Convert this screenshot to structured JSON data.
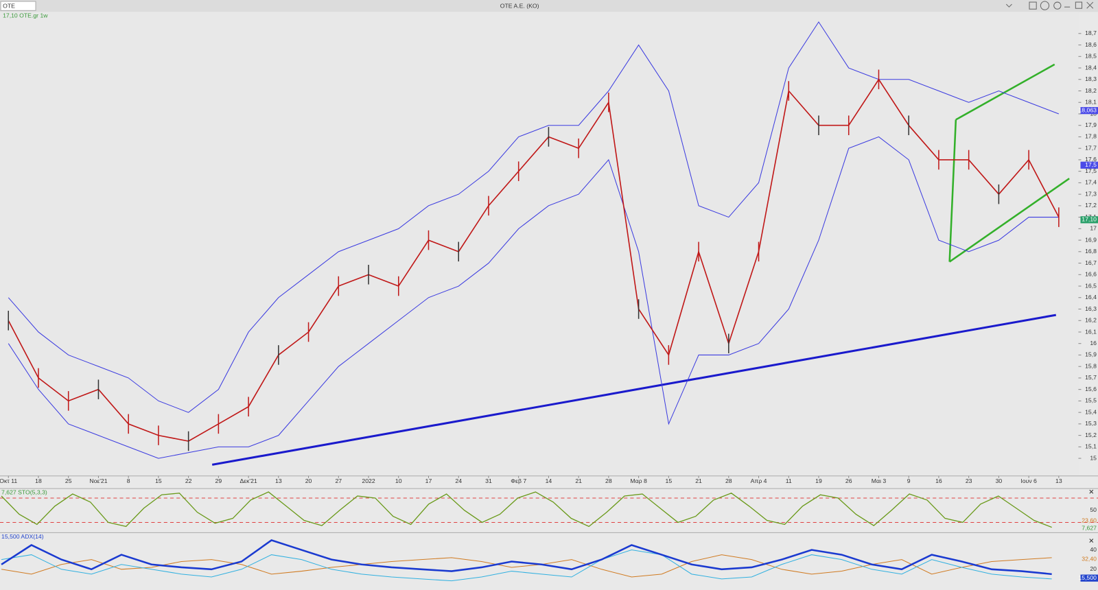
{
  "header": {
    "symbol": "OTE",
    "title": "OTE A.E. (KO)"
  },
  "price": {
    "legend": "17,10 OTE.gr 1w",
    "ylim": [
      14.92,
      18.76
    ],
    "yticks": [
      {
        "value": 18.7,
        "label": "18,7"
      },
      {
        "value": 18.6,
        "label": "18,6"
      },
      {
        "value": 18.5,
        "label": "18,5"
      },
      {
        "value": 18.4,
        "label": "18,4"
      },
      {
        "value": 18.3,
        "label": "18,3"
      },
      {
        "value": 18.2,
        "label": "18,2"
      },
      {
        "value": 18.1,
        "label": "18,1"
      },
      18,
      {
        "value": 17.9,
        "label": "17,9"
      },
      {
        "value": 17.8,
        "label": "17,8"
      },
      {
        "value": 17.7,
        "label": "17,7"
      },
      {
        "value": 17.6,
        "label": "17,6"
      },
      {
        "value": 17.5,
        "label": "17,5"
      },
      {
        "value": 17.4,
        "label": "17,4"
      },
      {
        "value": 17.3,
        "label": "17,3"
      },
      {
        "value": 17.2,
        "label": "17,2"
      },
      {
        "value": 17.1,
        "label": "17,1"
      },
      17,
      {
        "value": 16.9,
        "label": "16,9"
      },
      {
        "value": 16.8,
        "label": "16,8"
      },
      {
        "value": 16.7,
        "label": "16,7"
      },
      {
        "value": 16.6,
        "label": "16,6"
      },
      {
        "value": 16.5,
        "label": "16,5"
      },
      {
        "value": 16.4,
        "label": "16,4"
      },
      {
        "value": 16.3,
        "label": "16,3"
      },
      {
        "value": 16.2,
        "label": "16,2"
      },
      {
        "value": 16.1,
        "label": "16,1"
      },
      16,
      {
        "value": 15.9,
        "label": "15,9"
      },
      {
        "value": 15.8,
        "label": "15,8"
      },
      {
        "value": 15.7,
        "label": "15,7"
      },
      {
        "value": 15.6,
        "label": "15,6"
      },
      {
        "value": 15.5,
        "label": "15,5"
      },
      {
        "value": 15.4,
        "label": "15,4"
      },
      {
        "value": 15.3,
        "label": "15,3"
      },
      {
        "value": 15.2,
        "label": "15,2"
      },
      {
        "value": 15.1,
        "label": "15,1"
      },
      15
    ],
    "categories": [
      "Οκτ 11",
      "18",
      "25",
      "Νοε'21",
      "8",
      "15",
      "22",
      "29",
      "Δεκ'21",
      "13",
      "20",
      "27",
      "2022",
      "10",
      "17",
      "24",
      "31",
      "Φεβ 7",
      "14",
      "21",
      "28",
      "Μαρ 8",
      "15",
      "21",
      "28",
      "Απρ 4",
      "11",
      "19",
      "26",
      "Μαι 3",
      "9",
      "16",
      "23",
      "30",
      "Ιουν 6",
      "13"
    ],
    "close": [
      16.2,
      15.7,
      15.5,
      15.6,
      15.3,
      15.2,
      15.15,
      15.3,
      15.45,
      15.9,
      16.1,
      16.5,
      16.6,
      16.5,
      16.9,
      16.8,
      17.2,
      17.5,
      17.8,
      17.7,
      18.1,
      16.3,
      15.9,
      16.8,
      16.0,
      16.8,
      18.2,
      17.9,
      17.9,
      18.3,
      17.9,
      17.6,
      17.6,
      17.3,
      17.6,
      17.1
    ],
    "upper_band": [
      16.4,
      16.1,
      15.9,
      15.8,
      15.7,
      15.5,
      15.4,
      15.6,
      16.1,
      16.4,
      16.6,
      16.8,
      16.9,
      17.0,
      17.2,
      17.3,
      17.5,
      17.8,
      17.9,
      17.9,
      18.2,
      18.6,
      18.2,
      17.2,
      17.1,
      17.4,
      18.4,
      18.8,
      18.4,
      18.3,
      18.3,
      18.2,
      18.1,
      18.2,
      18.1,
      18.0
    ],
    "lower_band": [
      16.0,
      15.6,
      15.3,
      15.2,
      15.1,
      15.0,
      15.05,
      15.1,
      15.1,
      15.2,
      15.5,
      15.8,
      16.0,
      16.2,
      16.4,
      16.5,
      16.7,
      17.0,
      17.2,
      17.3,
      17.6,
      16.8,
      15.3,
      15.9,
      15.9,
      16.0,
      16.3,
      16.9,
      17.7,
      17.8,
      17.6,
      16.9,
      16.8,
      16.9,
      17.1,
      17.1
    ],
    "tags": [
      "18,063",
      "17,5",
      "17,10"
    ]
  },
  "stochastic": {
    "legend": "7,627 STO(5,3,3)",
    "ylim": [
      0,
      100
    ],
    "levels": [
      80,
      20
    ],
    "yticks": [
      50
    ],
    "values": [
      85,
      40,
      15,
      60,
      90,
      70,
      20,
      10,
      55,
      88,
      92,
      45,
      18,
      30,
      75,
      95,
      60,
      25,
      12,
      50,
      85,
      80,
      35,
      15,
      65,
      90,
      50,
      20,
      40,
      80,
      95,
      70,
      30,
      10,
      45,
      85,
      90,
      55,
      20,
      35,
      75,
      92,
      60,
      25,
      15,
      60,
      88,
      80,
      40,
      12,
      50,
      90,
      75,
      30,
      20,
      65,
      85,
      55,
      25,
      8
    ],
    "tags": [
      "23,60",
      "7,627"
    ]
  },
  "adx": {
    "legend": "15,500 ADX(14)",
    "ylim": [
      0,
      55
    ],
    "yticks": [
      40,
      20
    ],
    "adx": [
      25,
      45,
      30,
      20,
      35,
      25,
      22,
      20,
      28,
      50,
      40,
      30,
      25,
      22,
      20,
      18,
      22,
      28,
      25,
      20,
      30,
      45,
      35,
      25,
      20,
      22,
      30,
      40,
      35,
      25,
      20,
      35,
      28,
      20,
      18,
      15
    ],
    "plus_di": [
      20,
      15,
      25,
      30,
      20,
      22,
      28,
      30,
      25,
      15,
      18,
      22,
      25,
      28,
      30,
      32,
      28,
      22,
      25,
      30,
      20,
      12,
      15,
      28,
      35,
      30,
      20,
      15,
      18,
      25,
      30,
      15,
      22,
      28,
      30,
      32
    ],
    "minus_di": [
      30,
      35,
      20,
      15,
      25,
      20,
      15,
      12,
      20,
      35,
      30,
      20,
      15,
      12,
      10,
      8,
      12,
      18,
      15,
      12,
      30,
      40,
      35,
      15,
      10,
      12,
      25,
      35,
      30,
      20,
      15,
      30,
      22,
      15,
      12,
      10
    ],
    "tags": [
      "32,40",
      "15,500"
    ]
  }
}
